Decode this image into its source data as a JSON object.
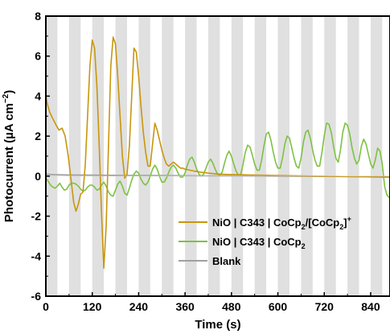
{
  "chart_data": {
    "type": "line",
    "xlabel": "Time (s)",
    "ylabel": "Photocurrent (µA cm",
    "ylabel_superscript": "−2",
    "ylabel_close": ")",
    "xlim": [
      0,
      890
    ],
    "ylim": [
      -6,
      8
    ],
    "xticks": [
      0,
      120,
      240,
      360,
      480,
      600,
      720,
      840
    ],
    "yticks": [
      -6,
      -4,
      -2,
      0,
      2,
      4,
      6,
      8
    ],
    "light_chopping": {
      "period_s": 60,
      "first_shaded_start_s": 0,
      "shaded_length_s": 30,
      "end_s": 870,
      "shade_color": "#e0e0e0"
    },
    "legend": {
      "placement": "bottom-right",
      "entries": [
        {
          "series_index": 0,
          "parts": [
            {
              "t": "NiO",
              "baseline": "0"
            },
            {
              "t": " | ",
              "baseline": "0"
            },
            {
              "t": "C343",
              "baseline": "0"
            },
            {
              "t": " | ",
              "baseline": "0"
            },
            {
              "t": "CoCp",
              "baseline": "0"
            },
            {
              "t": "2",
              "baseline": "sub"
            },
            {
              "t": "/[CoCp",
              "baseline": "0"
            },
            {
              "t": "2",
              "baseline": "sub"
            },
            {
              "t": "]",
              "baseline": "0"
            },
            {
              "t": "+",
              "baseline": "super"
            }
          ]
        },
        {
          "series_index": 1,
          "parts": [
            {
              "t": "NiO",
              "baseline": "0"
            },
            {
              "t": " | ",
              "baseline": "0"
            },
            {
              "t": "C343",
              "baseline": "0"
            },
            {
              "t": " | ",
              "baseline": "0"
            },
            {
              "t": "CoCp",
              "baseline": "0"
            },
            {
              "t": "2",
              "baseline": "sub"
            }
          ]
        },
        {
          "series_index": 2,
          "parts": [
            {
              "t": "Blank",
              "baseline": "0"
            }
          ]
        }
      ]
    },
    "series": [
      {
        "color": "#c8960c",
        "points": [
          [
            0,
            4.0
          ],
          [
            4,
            3.6
          ],
          [
            10,
            3.2
          ],
          [
            20,
            2.8
          ],
          [
            28,
            2.5
          ],
          [
            34,
            2.3
          ],
          [
            42,
            2.4
          ],
          [
            50,
            2.0
          ],
          [
            58,
            1.0
          ],
          [
            66,
            -0.3
          ],
          [
            72,
            -1.3
          ],
          [
            78,
            -1.75
          ],
          [
            84,
            -1.4
          ],
          [
            90,
            -0.9
          ],
          [
            96,
            -0.8
          ],
          [
            102,
            0.6
          ],
          [
            108,
            3.0
          ],
          [
            114,
            5.5
          ],
          [
            120,
            6.8
          ],
          [
            126,
            6.4
          ],
          [
            132,
            4.5
          ],
          [
            138,
            1.5
          ],
          [
            144,
            -1.8
          ],
          [
            150,
            -4.6
          ],
          [
            156,
            -2.5
          ],
          [
            162,
            1.5
          ],
          [
            168,
            5.5
          ],
          [
            174,
            6.95
          ],
          [
            180,
            6.6
          ],
          [
            186,
            5.0
          ],
          [
            192,
            3.0
          ],
          [
            198,
            1.0
          ],
          [
            204,
            -0.1
          ],
          [
            210,
            0.1
          ],
          [
            216,
            1.5
          ],
          [
            222,
            4.0
          ],
          [
            228,
            6.4
          ],
          [
            234,
            6.2
          ],
          [
            240,
            5.0
          ],
          [
            246,
            3.5
          ],
          [
            252,
            2.2
          ],
          [
            258,
            1.2
          ],
          [
            264,
            0.5
          ],
          [
            270,
            0.5
          ],
          [
            276,
            1.6
          ],
          [
            282,
            2.65
          ],
          [
            288,
            2.3
          ],
          [
            294,
            1.8
          ],
          [
            300,
            1.3
          ],
          [
            306,
            0.9
          ],
          [
            312,
            0.6
          ],
          [
            318,
            0.5
          ],
          [
            324,
            0.6
          ],
          [
            330,
            0.7
          ],
          [
            336,
            0.6
          ],
          [
            342,
            0.5
          ],
          [
            348,
            0.4
          ],
          [
            354,
            0.4
          ],
          [
            360,
            0.35
          ],
          [
            372,
            0.3
          ],
          [
            384,
            0.25
          ],
          [
            400,
            0.2
          ],
          [
            420,
            0.15
          ],
          [
            450,
            0.1
          ],
          [
            480,
            0.08
          ],
          [
            540,
            0.05
          ],
          [
            600,
            0.03
          ],
          [
            700,
            0.0
          ],
          [
            800,
            -0.02
          ],
          [
            870,
            -0.05
          ],
          [
            890,
            -0.05
          ]
        ]
      },
      {
        "color": "#7dc241",
        "points": [
          [
            0,
            -0.1
          ],
          [
            6,
            -0.25
          ],
          [
            12,
            -0.45
          ],
          [
            18,
            -0.55
          ],
          [
            24,
            -0.6
          ],
          [
            30,
            -0.5
          ],
          [
            36,
            -0.35
          ],
          [
            42,
            -0.55
          ],
          [
            48,
            -0.7
          ],
          [
            54,
            -0.65
          ],
          [
            60,
            -0.45
          ],
          [
            66,
            -0.35
          ],
          [
            72,
            -0.35
          ],
          [
            78,
            -0.4
          ],
          [
            84,
            -0.5
          ],
          [
            90,
            -0.65
          ],
          [
            96,
            -0.75
          ],
          [
            102,
            -0.7
          ],
          [
            108,
            -0.55
          ],
          [
            114,
            -0.45
          ],
          [
            120,
            -0.45
          ],
          [
            126,
            -0.55
          ],
          [
            132,
            -0.7
          ],
          [
            138,
            -0.65
          ],
          [
            144,
            -0.45
          ],
          [
            150,
            -0.3
          ],
          [
            156,
            -0.5
          ],
          [
            162,
            -0.8
          ],
          [
            168,
            -0.95
          ],
          [
            174,
            -1.0
          ],
          [
            180,
            -0.7
          ],
          [
            186,
            -0.4
          ],
          [
            192,
            -0.25
          ],
          [
            198,
            -0.5
          ],
          [
            204,
            -0.85
          ],
          [
            210,
            -0.95
          ],
          [
            216,
            -0.6
          ],
          [
            222,
            -0.2
          ],
          [
            228,
            0.1
          ],
          [
            234,
            0.25
          ],
          [
            240,
            0.15
          ],
          [
            246,
            -0.15
          ],
          [
            252,
            -0.35
          ],
          [
            258,
            -0.45
          ],
          [
            264,
            -0.3
          ],
          [
            270,
            0.0
          ],
          [
            276,
            0.35
          ],
          [
            282,
            0.55
          ],
          [
            288,
            0.35
          ],
          [
            294,
            0.0
          ],
          [
            300,
            -0.3
          ],
          [
            306,
            -0.3
          ],
          [
            312,
            -0.1
          ],
          [
            318,
            0.2
          ],
          [
            324,
            0.45
          ],
          [
            330,
            0.55
          ],
          [
            336,
            0.4
          ],
          [
            342,
            0.15
          ],
          [
            348,
            -0.05
          ],
          [
            354,
            -0.05
          ],
          [
            360,
            0.15
          ],
          [
            366,
            0.55
          ],
          [
            372,
            0.85
          ],
          [
            378,
            0.95
          ],
          [
            384,
            0.7
          ],
          [
            390,
            0.35
          ],
          [
            396,
            0.1
          ],
          [
            402,
            0.0
          ],
          [
            408,
            0.1
          ],
          [
            414,
            0.4
          ],
          [
            420,
            0.7
          ],
          [
            426,
            0.85
          ],
          [
            432,
            0.65
          ],
          [
            438,
            0.35
          ],
          [
            444,
            0.1
          ],
          [
            450,
            0.05
          ],
          [
            456,
            0.2
          ],
          [
            462,
            0.65
          ],
          [
            468,
            1.05
          ],
          [
            474,
            1.25
          ],
          [
            480,
            1.0
          ],
          [
            486,
            0.6
          ],
          [
            492,
            0.25
          ],
          [
            498,
            0.05
          ],
          [
            504,
            0.1
          ],
          [
            510,
            0.6
          ],
          [
            516,
            1.2
          ],
          [
            522,
            1.55
          ],
          [
            528,
            1.45
          ],
          [
            534,
            1.05
          ],
          [
            540,
            0.6
          ],
          [
            546,
            0.3
          ],
          [
            552,
            0.3
          ],
          [
            558,
            0.8
          ],
          [
            564,
            1.5
          ],
          [
            570,
            2.1
          ],
          [
            576,
            2.2
          ],
          [
            582,
            1.8
          ],
          [
            588,
            1.2
          ],
          [
            594,
            0.7
          ],
          [
            600,
            0.4
          ],
          [
            606,
            0.4
          ],
          [
            612,
            0.9
          ],
          [
            618,
            1.6
          ],
          [
            624,
            2.0
          ],
          [
            630,
            1.9
          ],
          [
            636,
            1.4
          ],
          [
            642,
            0.9
          ],
          [
            648,
            0.5
          ],
          [
            654,
            0.4
          ],
          [
            660,
            0.9
          ],
          [
            666,
            1.7
          ],
          [
            672,
            2.2
          ],
          [
            678,
            2.3
          ],
          [
            684,
            1.9
          ],
          [
            690,
            1.3
          ],
          [
            696,
            0.8
          ],
          [
            702,
            0.5
          ],
          [
            708,
            0.5
          ],
          [
            714,
            1.2
          ],
          [
            720,
            2.0
          ],
          [
            726,
            2.65
          ],
          [
            732,
            2.6
          ],
          [
            738,
            2.2
          ],
          [
            744,
            1.5
          ],
          [
            750,
            0.9
          ],
          [
            756,
            0.7
          ],
          [
            762,
            1.3
          ],
          [
            768,
            2.2
          ],
          [
            774,
            2.65
          ],
          [
            780,
            2.55
          ],
          [
            786,
            2.1
          ],
          [
            792,
            1.4
          ],
          [
            798,
            0.9
          ],
          [
            804,
            0.6
          ],
          [
            810,
            0.8
          ],
          [
            816,
            1.5
          ],
          [
            822,
            1.85
          ],
          [
            828,
            1.6
          ],
          [
            834,
            1.1
          ],
          [
            840,
            0.6
          ],
          [
            846,
            0.4
          ],
          [
            852,
            0.8
          ],
          [
            858,
            1.4
          ],
          [
            864,
            1.25
          ],
          [
            870,
            0.6
          ],
          [
            876,
            -0.5
          ],
          [
            882,
            -0.95
          ],
          [
            890,
            -1.1
          ]
        ]
      },
      {
        "color": "#a0a0a0",
        "points": [
          [
            0,
            0.1
          ],
          [
            20,
            0.08
          ],
          [
            60,
            0.06
          ],
          [
            120,
            0.05
          ],
          [
            200,
            0.04
          ],
          [
            300,
            0.03
          ],
          [
            400,
            0.02
          ],
          [
            500,
            0.01
          ],
          [
            600,
            0.0
          ],
          [
            700,
            -0.01
          ],
          [
            800,
            -0.02
          ],
          [
            890,
            -0.02
          ]
        ]
      }
    ]
  }
}
